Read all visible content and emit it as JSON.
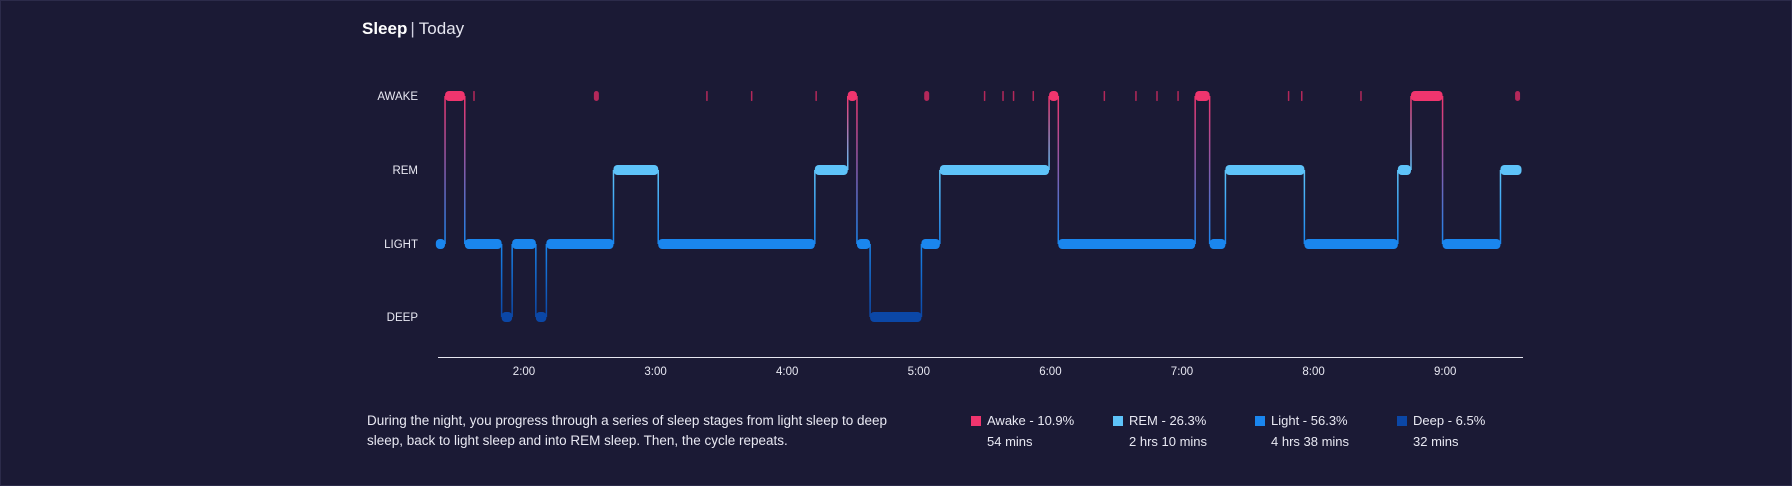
{
  "header": {
    "title": "Sleep",
    "separator": "|",
    "period": "Today"
  },
  "description": "During the night, you progress through a series of sleep stages from light sleep to deep sleep, back to light sleep and into REM sleep. Then, the cycle repeats.",
  "legend": [
    {
      "key": "awake",
      "label": "Awake - 10.9%",
      "duration": "54 mins",
      "color": "#f0356e"
    },
    {
      "key": "rem",
      "label": "REM - 26.3%",
      "duration": "2 hrs 10 mins",
      "color": "#5ec3f9"
    },
    {
      "key": "light",
      "label": "Light - 56.3%",
      "duration": "4 hrs 38 mins",
      "color": "#1a86ee"
    },
    {
      "key": "deep",
      "label": "Deep - 6.5%",
      "duration": "32 mins",
      "color": "#0b47a6"
    }
  ],
  "chart_data": {
    "type": "step-timeline",
    "stages": [
      "AWAKE",
      "REM",
      "LIGHT",
      "DEEP"
    ],
    "x_ticks": [
      "2:00",
      "3:00",
      "4:00",
      "5:00",
      "6:00",
      "7:00",
      "8:00",
      "9:00"
    ],
    "x_range_hours": [
      1.33,
      9.58
    ],
    "colors": {
      "AWAKE": "#f0356e",
      "REM": "#5ec3f9",
      "LIGHT": "#1a86ee",
      "DEEP": "#0b47a6"
    },
    "segments": [
      {
        "stage": "LIGHT",
        "start": 1.33,
        "end": 1.4
      },
      {
        "stage": "AWAKE",
        "start": 1.4,
        "end": 1.55
      },
      {
        "stage": "LIGHT",
        "start": 1.55,
        "end": 1.83
      },
      {
        "stage": "DEEP",
        "start": 1.83,
        "end": 1.91
      },
      {
        "stage": "LIGHT",
        "start": 1.91,
        "end": 2.09
      },
      {
        "stage": "DEEP",
        "start": 2.09,
        "end": 2.17
      },
      {
        "stage": "LIGHT",
        "start": 2.17,
        "end": 2.68
      },
      {
        "stage": "REM",
        "start": 2.68,
        "end": 3.02
      },
      {
        "stage": "LIGHT",
        "start": 3.02,
        "end": 4.21
      },
      {
        "stage": "REM",
        "start": 4.21,
        "end": 4.46
      },
      {
        "stage": "AWAKE",
        "start": 4.46,
        "end": 4.53
      },
      {
        "stage": "LIGHT",
        "start": 4.53,
        "end": 4.63
      },
      {
        "stage": "DEEP",
        "start": 4.63,
        "end": 5.02
      },
      {
        "stage": "LIGHT",
        "start": 5.02,
        "end": 5.16
      },
      {
        "stage": "REM",
        "start": 5.16,
        "end": 5.99
      },
      {
        "stage": "AWAKE",
        "start": 5.99,
        "end": 6.06
      },
      {
        "stage": "LIGHT",
        "start": 6.06,
        "end": 7.1
      },
      {
        "stage": "AWAKE",
        "start": 7.1,
        "end": 7.21
      },
      {
        "stage": "LIGHT",
        "start": 7.21,
        "end": 7.33
      },
      {
        "stage": "REM",
        "start": 7.33,
        "end": 7.93
      },
      {
        "stage": "LIGHT",
        "start": 7.93,
        "end": 8.64
      },
      {
        "stage": "REM",
        "start": 8.64,
        "end": 8.74
      },
      {
        "stage": "AWAKE",
        "start": 8.74,
        "end": 8.98
      },
      {
        "stage": "LIGHT",
        "start": 8.98,
        "end": 9.42
      },
      {
        "stage": "REM",
        "start": 9.42,
        "end": 9.58
      }
    ],
    "brief_awakenings": [
      1.62,
      2.55,
      3.39,
      3.73,
      4.22,
      5.06,
      5.5,
      5.64,
      5.72,
      5.87,
      6.41,
      6.65,
      6.81,
      6.97,
      7.81,
      7.91,
      8.36,
      9.55
    ],
    "grid": false
  }
}
